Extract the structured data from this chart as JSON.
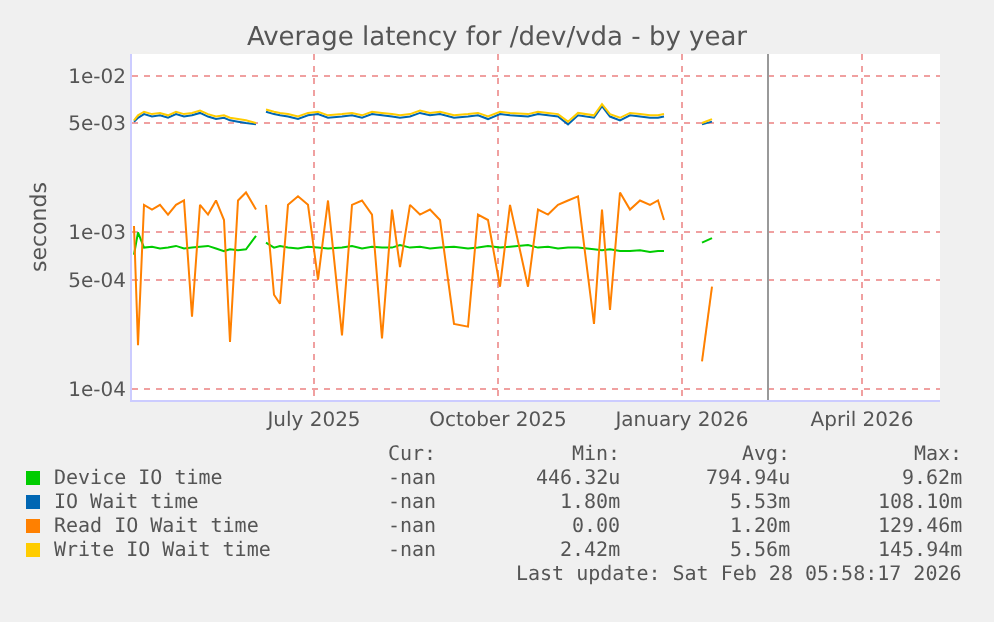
{
  "chart_data": {
    "type": "line",
    "title": "Average latency for /dev/vda - by year",
    "ylabel": "seconds",
    "x": [
      "2025-04-17",
      "2025-04-19",
      "2025-04-22",
      "2025-04-26",
      "2025-04-30",
      "2025-05-04",
      "2025-05-08",
      "2025-05-12",
      "2025-05-16",
      "2025-05-20",
      "2025-05-24",
      "2025-05-28",
      "2025-06-01",
      "2025-06-04",
      "2025-06-08",
      "2025-06-12",
      "2025-06-17",
      "2025-06-19",
      "2025-06-22",
      "2025-06-26",
      "2025-06-29",
      "2025-07-03",
      "2025-07-08",
      "2025-07-13",
      "2025-07-18",
      "2025-07-23",
      "2025-07-30",
      "2025-08-04",
      "2025-08-09",
      "2025-08-14",
      "2025-08-19",
      "2025-08-24",
      "2025-08-28",
      "2025-09-02",
      "2025-09-07",
      "2025-09-12",
      "2025-09-17",
      "2025-09-24",
      "2025-10-01",
      "2025-10-06",
      "2025-10-11",
      "2025-10-17",
      "2025-10-22",
      "2025-10-31",
      "2025-11-05",
      "2025-11-10",
      "2025-11-15",
      "2025-11-20",
      "2025-11-25",
      "2025-12-03",
      "2025-12-07",
      "2025-12-11",
      "2025-12-16",
      "2025-12-21",
      "2025-12-26",
      "2025-12-31",
      "2026-01-04",
      "2026-01-07",
      "2026-01-15",
      "2026-01-26",
      "2026-01-31"
    ],
    "series": [
      {
        "name": "Device IO time",
        "color": "#00cc00",
        "values": [
          0.00072,
          0.001,
          0.0008,
          0.00081,
          0.00079,
          0.0008,
          0.00082,
          0.00079,
          0.0008,
          0.00081,
          0.00082,
          0.00079,
          0.00076,
          0.00078,
          0.00077,
          0.00078,
          0.00095,
          null,
          0.00086,
          0.0008,
          0.00082,
          0.0008,
          0.00079,
          0.00081,
          0.0008,
          0.00079,
          0.0008,
          0.00082,
          0.00079,
          0.00081,
          0.0008,
          0.0008,
          0.00083,
          0.0008,
          0.00081,
          0.00079,
          0.0008,
          0.00081,
          0.00079,
          0.0008,
          0.00082,
          0.0008,
          0.00081,
          0.00083,
          0.0008,
          0.00081,
          0.00079,
          0.0008,
          0.0008,
          0.00078,
          0.00077,
          0.00078,
          0.00076,
          0.00076,
          0.00077,
          0.00075,
          0.00076,
          0.00076,
          null,
          0.00086,
          0.00092
        ]
      },
      {
        "name": "IO Wait time",
        "color": "#0066b3",
        "values": [
          0.0051,
          0.0054,
          0.0057,
          0.0055,
          0.0056,
          0.0054,
          0.0057,
          0.0055,
          0.0056,
          0.0058,
          0.0055,
          0.0053,
          0.0054,
          0.0052,
          0.0051,
          0.005,
          0.0049,
          null,
          0.0059,
          0.0057,
          0.0056,
          0.0055,
          0.0053,
          0.0056,
          0.0057,
          0.0054,
          0.0055,
          0.0056,
          0.0054,
          0.0057,
          0.0056,
          0.0055,
          0.0054,
          0.0055,
          0.0058,
          0.0056,
          0.0057,
          0.0054,
          0.0055,
          0.0056,
          0.0053,
          0.0057,
          0.0056,
          0.0055,
          0.0057,
          0.0056,
          0.0055,
          0.0049,
          0.0056,
          0.0054,
          0.0064,
          0.0055,
          0.0052,
          0.0056,
          0.0055,
          0.0054,
          0.0054,
          0.0055,
          null,
          0.0049,
          0.0051
        ]
      },
      {
        "name": "Read IO Wait time",
        "color": "#ff8000",
        "values": [
          0.0011,
          0.00019,
          0.0015,
          0.0014,
          0.0015,
          0.0013,
          0.0015,
          0.0016,
          0.00029,
          0.0015,
          0.0013,
          0.0016,
          0.0012,
          0.0002,
          0.0016,
          0.0018,
          0.0014,
          null,
          0.0015,
          0.0004,
          0.00035,
          0.0015,
          0.0017,
          0.0015,
          0.0005,
          0.0016,
          0.00022,
          0.0015,
          0.0016,
          0.0013,
          0.00021,
          0.0014,
          0.0006,
          0.0015,
          0.0013,
          0.0014,
          0.0012,
          0.00026,
          0.00025,
          0.0013,
          0.0012,
          0.00045,
          0.0015,
          0.00045,
          0.0014,
          0.0013,
          0.0015,
          0.0016,
          0.0017,
          0.00026,
          0.0014,
          0.00032,
          0.0018,
          0.0014,
          0.0016,
          0.0015,
          0.0016,
          0.0012,
          null,
          0.00015,
          0.00045
        ]
      },
      {
        "name": "Write IO Wait time",
        "color": "#ffcc00",
        "values": [
          0.0052,
          0.0056,
          0.0059,
          0.0057,
          0.0058,
          0.0056,
          0.0059,
          0.0057,
          0.0058,
          0.006,
          0.0057,
          0.0055,
          0.0056,
          0.0054,
          0.0053,
          0.0052,
          0.005,
          null,
          0.0061,
          0.0059,
          0.0058,
          0.0057,
          0.0055,
          0.0058,
          0.0059,
          0.0056,
          0.0057,
          0.0058,
          0.0056,
          0.0059,
          0.0058,
          0.0057,
          0.0056,
          0.0057,
          0.006,
          0.0058,
          0.0059,
          0.0056,
          0.0057,
          0.0058,
          0.0055,
          0.0059,
          0.0058,
          0.0057,
          0.0059,
          0.0058,
          0.0057,
          0.0051,
          0.0058,
          0.0056,
          0.0066,
          0.0057,
          0.0054,
          0.0058,
          0.0057,
          0.0056,
          0.0056,
          0.0057,
          null,
          0.005,
          0.0053
        ]
      }
    ],
    "log": "y",
    "ylim": [
      8.5e-05,
      0.0138
    ],
    "yticks": [
      {
        "value": 0.01,
        "label": "1e-02"
      },
      {
        "value": 0.005,
        "label": "5e-03"
      },
      {
        "value": 0.001,
        "label": "1e-03"
      },
      {
        "value": 0.0005,
        "label": "5e-04"
      },
      {
        "value": 0.0001,
        "label": "1e-04"
      }
    ],
    "xlim": [
      "2025-04-16",
      "2026-05-25"
    ],
    "xticks": [
      {
        "value": "2025-07-16",
        "label": "July 2025"
      },
      {
        "value": "2025-10-16",
        "label": "October 2025"
      },
      {
        "value": "2026-01-16",
        "label": "January 2026"
      },
      {
        "value": "2026-04-16",
        "label": "April 2026"
      }
    ],
    "ref_lines": [
      {
        "axis": "x",
        "value": "2026-02-28",
        "color": "#999999"
      }
    ],
    "grid": true,
    "legend": "bottom",
    "marker": "none",
    "line_style": "solid",
    "annotations": [
      "Cur:",
      "Min:",
      "Avg:",
      "Max:",
      "-nan",
      "446.32u",
      "794.94u",
      "9.62m",
      "-nan",
      "1.80m",
      "5.53m",
      "108.10m",
      "-nan",
      "0.00",
      "1.20m",
      "129.46m",
      "-nan",
      "2.42m",
      "5.56m",
      "145.94m",
      "Last update: Sat Feb 28 05:58:17 2026"
    ]
  }
}
